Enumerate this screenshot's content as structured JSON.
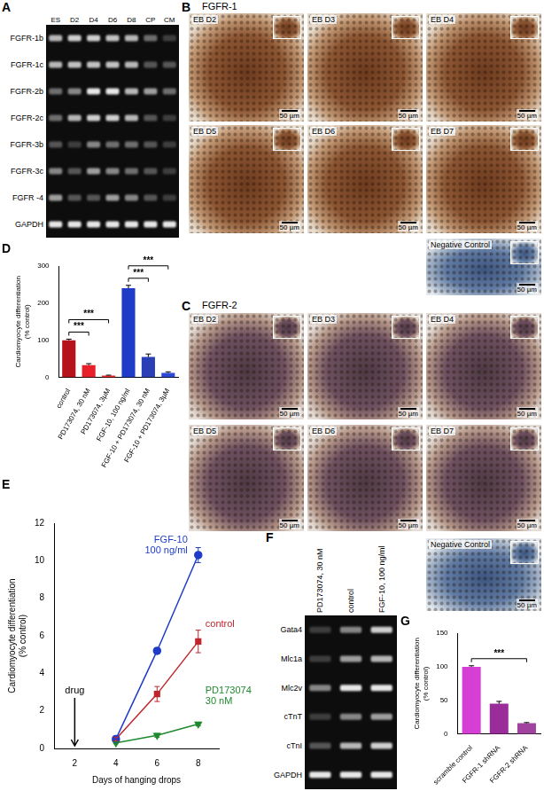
{
  "panels": [
    {
      "letter": "A",
      "type": "gel",
      "lanes": [
        "ES",
        "D2",
        "D4",
        "D6",
        "D8",
        "CP",
        "CM"
      ],
      "rows": [
        {
          "label": "FGFR-1b",
          "bands": [
            0.7,
            0.8,
            0.8,
            0.75,
            0.7,
            0.4,
            0.2
          ]
        },
        {
          "label": "FGFR-1c",
          "bands": [
            0.7,
            0.75,
            0.75,
            0.75,
            0.7,
            0.3,
            0.3
          ]
        },
        {
          "label": "FGFR-2b",
          "bands": [
            0.4,
            0.5,
            0.9,
            0.9,
            0.7,
            0.6,
            0.4
          ]
        },
        {
          "label": "FGFR-2c",
          "bands": [
            0.4,
            0.7,
            0.8,
            0.8,
            0.7,
            0.3,
            0.2
          ]
        },
        {
          "label": "FGFR-3b",
          "bands": [
            0.3,
            0.2,
            0.5,
            0.4,
            0.4,
            0.3,
            0.2
          ]
        },
        {
          "label": "FGFR-3c",
          "bands": [
            0.5,
            0.3,
            0.6,
            0.5,
            0.4,
            0.3,
            0.2
          ]
        },
        {
          "label": "FGFR -4",
          "bands": [
            0.6,
            0.3,
            0.3,
            0.6,
            0.5,
            0.3,
            0.2
          ]
        },
        {
          "label": "GAPDH",
          "bands": [
            0.9,
            0.9,
            0.9,
            0.9,
            0.9,
            0.9,
            0.9
          ]
        }
      ]
    },
    {
      "letter": "B",
      "type": "images",
      "title": "FGFR-1",
      "images": [
        "EB D2",
        "EB D3",
        "EB D4",
        "EB D5",
        "EB D6",
        "EB D7"
      ],
      "negative": "Negative Control",
      "scale_bar": "50 µm"
    },
    {
      "letter": "C",
      "type": "images",
      "title": "FGFR-2",
      "images": [
        "EB D2",
        "EB D3",
        "EB D4",
        "EB D5",
        "EB D6",
        "EB D7"
      ],
      "negative": "Negative Control",
      "scale_bar": "50 µm"
    },
    {
      "letter": "F",
      "type": "gel",
      "lanes": [
        "PD173074, 30 nM",
        "control",
        "FGF-10, 100 ng/ml"
      ],
      "rows": [
        {
          "label": "Gata4",
          "bands": [
            0.2,
            0.5,
            0.8
          ]
        },
        {
          "label": "Mlc1a",
          "bands": [
            0.2,
            0.6,
            0.7
          ]
        },
        {
          "label": "Mlc2v",
          "bands": [
            0.5,
            0.9,
            0.9
          ]
        },
        {
          "label": "cTnT",
          "bands": [
            0.2,
            0.5,
            0.6
          ]
        },
        {
          "label": "cTnI",
          "bands": [
            0.3,
            0.7,
            0.8
          ]
        },
        {
          "label": "GAPDH",
          "bands": [
            0.9,
            0.9,
            0.9
          ]
        }
      ]
    }
  ],
  "chart_data": [
    {
      "panel": "D",
      "type": "bar",
      "y_label": "Cardiomyocyte differentiation\n(% control)",
      "categories": [
        "control",
        "PD173074, 30 nM",
        "PD173074, 3μM",
        "FGF-10, 100 ng/ml",
        "FGF-10 + PD173074, 30 nM",
        "FGF-10 + PD173074, 3μM"
      ],
      "values": [
        100,
        33,
        5,
        240,
        55,
        12
      ],
      "errors": [
        3,
        4,
        1,
        8,
        8,
        3
      ],
      "colors": [
        "#b5121b",
        "#e8202a",
        "#f52a2a",
        "#1f3cc8",
        "#2a3fb5",
        "#2b48d6"
      ],
      "ylim": [
        0,
        300
      ],
      "yticks": [
        0,
        100,
        200,
        300
      ],
      "grid": false,
      "annotations": [
        {
          "text": "***",
          "from": "control",
          "to": "PD173074, 30 nM"
        },
        {
          "text": "***",
          "from": "control",
          "to": "PD173074, 3μM"
        },
        {
          "text": "***",
          "from": "FGF-10, 100 ng/ml",
          "to": "FGF-10 + PD173074, 30 nM"
        },
        {
          "text": "***",
          "from": "FGF-10, 100 ng/ml",
          "to": "FGF-10 + PD173074, 3μM"
        }
      ]
    },
    {
      "panel": "E",
      "type": "line",
      "x_label": "Days of hanging drops",
      "y_label": "Cardiomyocyte differentiation\n(% control)",
      "x": [
        4,
        6,
        8
      ],
      "series": [
        {
          "name": "FGF-10 100 ng/ml",
          "color": "#1f3cc8",
          "marker": "circle",
          "values": [
            0.5,
            5.2,
            10.3
          ],
          "errors": [
            0.1,
            0.15,
            0.4
          ]
        },
        {
          "name": "control",
          "color": "#c0262c",
          "marker": "square",
          "values": [
            0.5,
            2.9,
            5.7
          ],
          "errors": [
            0.1,
            0.4,
            0.6
          ]
        },
        {
          "name": "PD173074 30 nM",
          "color": "#1e8a2e",
          "marker": "triangle-down",
          "values": [
            0.3,
            0.7,
            1.3
          ],
          "errors": [
            0.05,
            0.1,
            0.1
          ]
        }
      ],
      "xlim": [
        1,
        9
      ],
      "xticks": [
        2,
        4,
        6,
        8
      ],
      "ylim": [
        0,
        12
      ],
      "yticks": [
        0,
        2,
        4,
        6,
        8,
        10,
        12
      ],
      "grid": false,
      "annotations": [
        {
          "text": "drug",
          "x": 2
        }
      ]
    },
    {
      "panel": "G",
      "type": "bar",
      "y_label": "Cardiomyocyte differentiation\n(% control)",
      "categories": [
        "scramble control",
        "FGFR-1 shRNA",
        "FGFR-2 shRNA"
      ],
      "values": [
        100,
        45,
        16
      ],
      "errors": [
        1.5,
        3.5,
        1
      ],
      "colors": [
        "#d63fd6",
        "#9b2d9b",
        "#a0439e"
      ],
      "ylim": [
        0,
        150
      ],
      "yticks": [
        0,
        50,
        100,
        150
      ],
      "grid": false,
      "annotations": [
        {
          "text": "***",
          "from": "scramble control",
          "to": "FGFR-2 shRNA"
        }
      ]
    }
  ]
}
